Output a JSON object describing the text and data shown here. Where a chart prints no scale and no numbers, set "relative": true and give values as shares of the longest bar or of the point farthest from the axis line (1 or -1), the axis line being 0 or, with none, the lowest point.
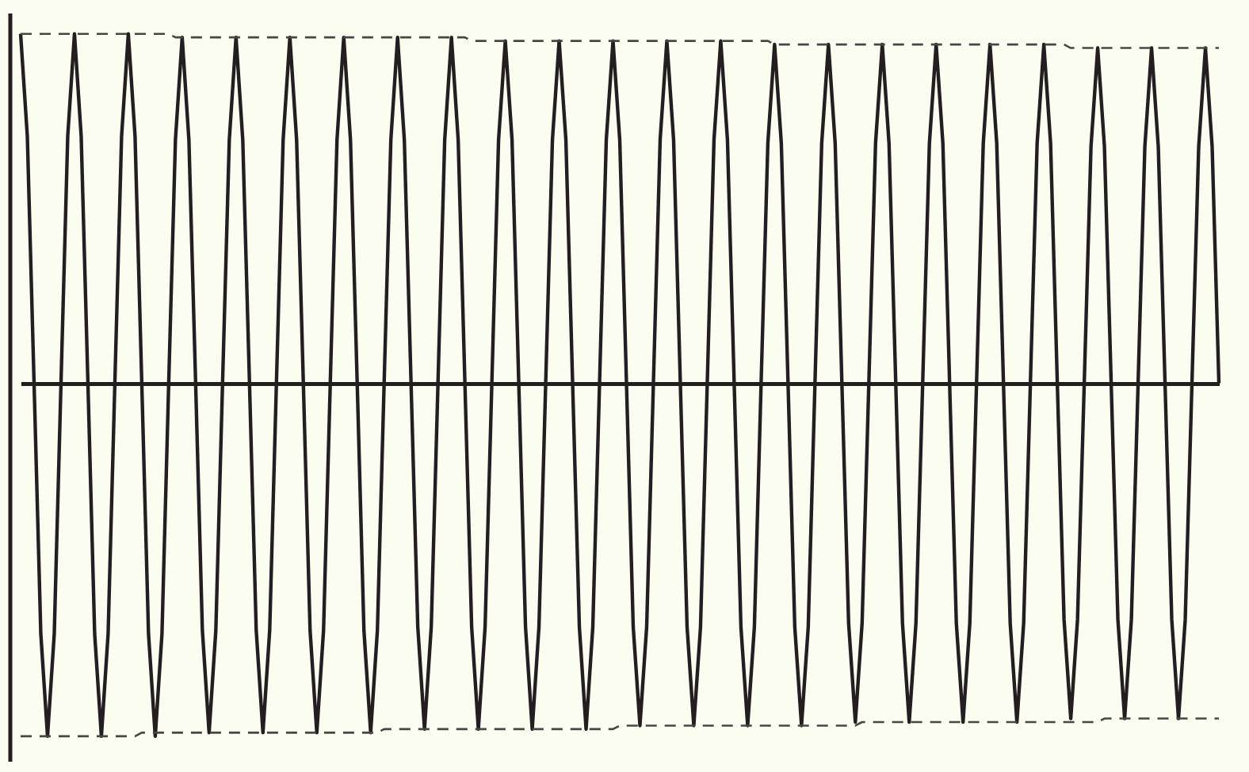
{
  "chart_data": {
    "type": "line",
    "relative": true,
    "categories": [
      null,
      null,
      null,
      null,
      null,
      null,
      null,
      null,
      null,
      null,
      null,
      null,
      null,
      null,
      null,
      null,
      null,
      null,
      null,
      null,
      null,
      null,
      null,
      null,
      null,
      null,
      null,
      null,
      null,
      null,
      null,
      null,
      null,
      null,
      null,
      null,
      null,
      null,
      null,
      null,
      null,
      null,
      null,
      null,
      null,
      null,
      null,
      null,
      null,
      null,
      null,
      null,
      null,
      null,
      null,
      null,
      null,
      null,
      null,
      null,
      null,
      null,
      null,
      null,
      null,
      null,
      null,
      null,
      null,
      null,
      null,
      null,
      null,
      null,
      null,
      null,
      null,
      null,
      null,
      null,
      null,
      null,
      null,
      null,
      null,
      null,
      null,
      null,
      null,
      null,
      null,
      null,
      null,
      null,
      null,
      null,
      null,
      null,
      null,
      null,
      null,
      null,
      null,
      null,
      null,
      null,
      null,
      null,
      null,
      null,
      null,
      null,
      null,
      null,
      null,
      null,
      null,
      null,
      null,
      null,
      null,
      null,
      null,
      null,
      null,
      null,
      null,
      null,
      null,
      null,
      null,
      null,
      null,
      null,
      null,
      null,
      null,
      null,
      null,
      null,
      null,
      null,
      null,
      null,
      null,
      null,
      null,
      null,
      null,
      null,
      null,
      null,
      null,
      null,
      null,
      null,
      null,
      null,
      null,
      null,
      null,
      null,
      null,
      null,
      null,
      null,
      null,
      null,
      null,
      null,
      null,
      null,
      null,
      null,
      null,
      null,
      null,
      null,
      null
    ],
    "series": [
      {
        "color": "#231f20",
        "line_style": "solid",
        "values": [
          0.99,
          0.7,
          0,
          -0.71,
          -1,
          -0.71,
          0,
          0.7,
          0.99,
          0.7,
          0,
          -0.71,
          -1,
          -0.71,
          0,
          0.7,
          0.99,
          0.7,
          0,
          -0.71,
          -1,
          -0.71,
          0,
          0.69,
          0.98,
          0.69,
          0,
          -0.7,
          -0.99,
          -0.7,
          0,
          0.69,
          0.98,
          0.69,
          0,
          -0.7,
          -0.99,
          -0.7,
          0,
          0.69,
          0.98,
          0.69,
          0,
          -0.7,
          -0.99,
          -0.7,
          0,
          0.69,
          0.98,
          0.69,
          0,
          -0.7,
          -0.99,
          -0.7,
          0,
          0.69,
          0.98,
          0.69,
          0,
          -0.69,
          -0.98,
          -0.69,
          0,
          0.69,
          0.98,
          0.69,
          0,
          -0.69,
          -0.98,
          -0.69,
          0,
          0.69,
          0.97,
          0.69,
          0,
          -0.69,
          -0.98,
          -0.69,
          0,
          0.69,
          0.97,
          0.69,
          0,
          -0.69,
          -0.98,
          -0.69,
          0,
          0.69,
          0.97,
          0.69,
          0,
          -0.69,
          -0.97,
          -0.69,
          0,
          0.69,
          0.97,
          0.69,
          0,
          -0.69,
          -0.97,
          -0.69,
          0,
          0.69,
          0.97,
          0.69,
          0,
          -0.69,
          -0.97,
          -0.69,
          0,
          0.68,
          0.96,
          0.68,
          0,
          -0.69,
          -0.97,
          -0.69,
          0,
          0.68,
          0.96,
          0.68,
          0,
          -0.68,
          -0.96,
          -0.68,
          0,
          0.68,
          0.96,
          0.68,
          0,
          -0.68,
          -0.96,
          -0.68,
          0,
          0.68,
          0.96,
          0.68,
          0,
          -0.68,
          -0.96,
          -0.68,
          0,
          0.68,
          0.96,
          0.68,
          0,
          -0.68,
          -0.96,
          -0.68,
          0,
          0.68,
          0.96,
          0.68,
          0,
          -0.67,
          -0.95,
          -0.67,
          0,
          0.67,
          0.95,
          0.67,
          0,
          -0.67,
          -0.95,
          -0.67,
          0,
          0.67,
          0.95,
          0.67,
          0,
          -0.67,
          -0.95,
          -0.67,
          0,
          0.67,
          0.95,
          0.67,
          0
        ]
      },
      {
        "color": "#4a4545",
        "line_style": "dashed",
        "values": [
          0.99,
          0.99,
          0.99,
          0.99,
          0.99,
          0.99,
          0.99,
          0.99,
          0.99,
          0.99,
          0.99,
          0.99,
          0.99,
          0.99,
          0.99,
          0.99,
          0.99,
          0.99,
          0.99,
          0.99,
          0.99,
          0.99,
          0.99,
          0.98,
          0.98,
          0.98,
          0.98,
          0.98,
          0.98,
          0.98,
          0.98,
          0.98,
          0.98,
          0.98,
          0.98,
          0.98,
          0.98,
          0.98,
          0.98,
          0.98,
          0.98,
          0.98,
          0.98,
          0.98,
          0.98,
          0.98,
          0.98,
          0.98,
          0.98,
          0.98,
          0.98,
          0.98,
          0.98,
          0.98,
          0.98,
          0.98,
          0.98,
          0.98,
          0.98,
          0.98,
          0.98,
          0.98,
          0.98,
          0.98,
          0.98,
          0.98,
          0.98,
          0.97,
          0.97,
          0.97,
          0.97,
          0.97,
          0.97,
          0.97,
          0.97,
          0.97,
          0.97,
          0.97,
          0.97,
          0.97,
          0.97,
          0.97,
          0.97,
          0.97,
          0.97,
          0.97,
          0.97,
          0.97,
          0.97,
          0.97,
          0.97,
          0.97,
          0.97,
          0.97,
          0.97,
          0.97,
          0.97,
          0.97,
          0.97,
          0.97,
          0.97,
          0.97,
          0.97,
          0.97,
          0.97,
          0.97,
          0.97,
          0.97,
          0.97,
          0.97,
          0.97,
          0.97,
          0.96,
          0.96,
          0.96,
          0.96,
          0.96,
          0.96,
          0.96,
          0.96,
          0.96,
          0.96,
          0.96,
          0.96,
          0.96,
          0.96,
          0.96,
          0.96,
          0.96,
          0.96,
          0.96,
          0.96,
          0.96,
          0.96,
          0.96,
          0.96,
          0.96,
          0.96,
          0.96,
          0.96,
          0.96,
          0.96,
          0.96,
          0.96,
          0.96,
          0.96,
          0.96,
          0.96,
          0.96,
          0.96,
          0.96,
          0.96,
          0.96,
          0.96,
          0.96,
          0.96,
          0.95,
          0.95,
          0.95,
          0.95,
          0.95,
          0.95,
          0.95,
          0.95,
          0.95,
          0.95,
          0.95,
          0.95,
          0.95,
          0.95,
          0.95,
          0.95,
          0.95,
          0.95,
          0.95,
          0.95,
          0.95,
          0.95,
          0.95
        ]
      },
      {
        "color": "#4a4545",
        "line_style": "dashed",
        "values": [
          -1,
          -1,
          -1,
          -1,
          -1,
          -1,
          -1,
          -1,
          -1,
          -1,
          -1,
          -1,
          -1,
          -1,
          -1,
          -1,
          -1,
          -1,
          -0.99,
          -0.99,
          -0.99,
          -0.99,
          -0.99,
          -0.99,
          -0.99,
          -0.99,
          -0.99,
          -0.99,
          -0.99,
          -0.99,
          -0.99,
          -0.99,
          -0.99,
          -0.99,
          -0.99,
          -0.99,
          -0.99,
          -0.99,
          -0.99,
          -0.99,
          -0.99,
          -0.99,
          -0.99,
          -0.99,
          -0.99,
          -0.99,
          -0.99,
          -0.99,
          -0.99,
          -0.99,
          -0.99,
          -0.99,
          -0.99,
          -0.99,
          -0.98,
          -0.98,
          -0.98,
          -0.98,
          -0.98,
          -0.98,
          -0.98,
          -0.98,
          -0.98,
          -0.98,
          -0.98,
          -0.98,
          -0.98,
          -0.98,
          -0.98,
          -0.98,
          -0.98,
          -0.98,
          -0.98,
          -0.98,
          -0.98,
          -0.98,
          -0.98,
          -0.98,
          -0.98,
          -0.98,
          -0.98,
          -0.98,
          -0.98,
          -0.98,
          -0.98,
          -0.98,
          -0.98,
          -0.98,
          -0.98,
          -0.97,
          -0.97,
          -0.97,
          -0.97,
          -0.97,
          -0.97,
          -0.97,
          -0.97,
          -0.97,
          -0.97,
          -0.97,
          -0.97,
          -0.97,
          -0.97,
          -0.97,
          -0.97,
          -0.97,
          -0.97,
          -0.97,
          -0.97,
          -0.97,
          -0.97,
          -0.97,
          -0.97,
          -0.97,
          -0.97,
          -0.97,
          -0.97,
          -0.97,
          -0.97,
          -0.97,
          -0.97,
          -0.97,
          -0.97,
          -0.97,
          -0.97,
          -0.96,
          -0.96,
          -0.96,
          -0.96,
          -0.96,
          -0.96,
          -0.96,
          -0.96,
          -0.96,
          -0.96,
          -0.96,
          -0.96,
          -0.96,
          -0.96,
          -0.96,
          -0.96,
          -0.96,
          -0.96,
          -0.96,
          -0.96,
          -0.96,
          -0.96,
          -0.96,
          -0.96,
          -0.96,
          -0.96,
          -0.96,
          -0.96,
          -0.96,
          -0.96,
          -0.96,
          -0.96,
          -0.96,
          -0.96,
          -0.96,
          -0.96,
          -0.95,
          -0.95,
          -0.95,
          -0.95,
          -0.95,
          -0.95,
          -0.95,
          -0.95,
          -0.95,
          -0.95,
          -0.95,
          -0.95,
          -0.95,
          -0.95,
          -0.95,
          -0.95,
          -0.95,
          -0.95
        ]
      }
    ]
  }
}
